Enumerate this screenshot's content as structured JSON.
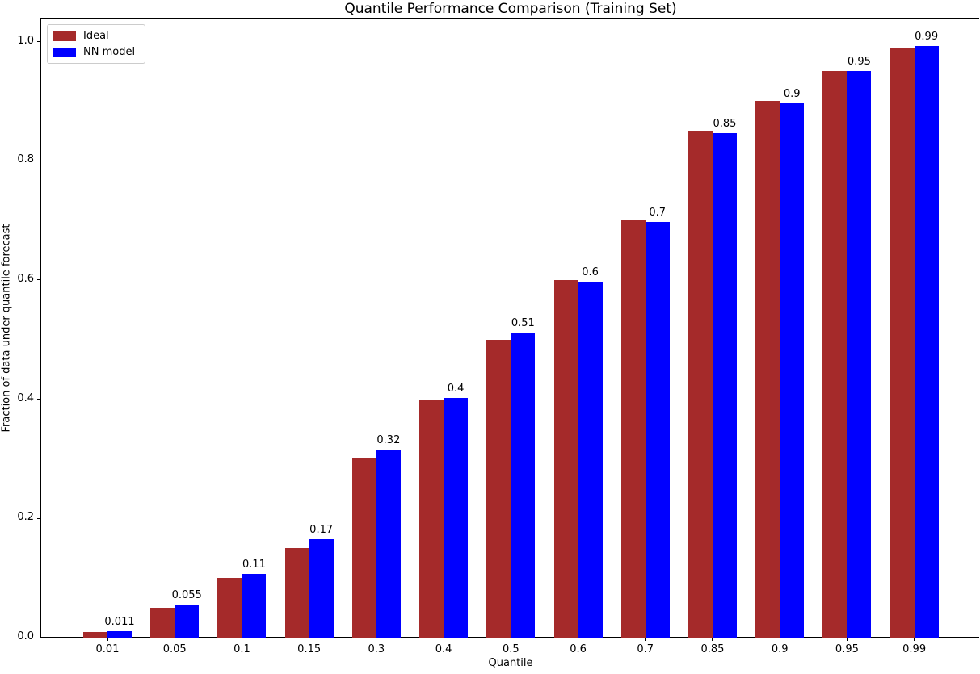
{
  "chart_data": {
    "type": "bar",
    "title": "Quantile Performance Comparison (Training Set)",
    "xlabel": "Quantile",
    "ylabel": "Fraction of data under quantile forecast",
    "categories": [
      "0.01",
      "0.05",
      "0.1",
      "0.15",
      "0.3",
      "0.4",
      "0.5",
      "0.6",
      "0.7",
      "0.85",
      "0.9",
      "0.95",
      "0.99"
    ],
    "series": [
      {
        "name": "Ideal",
        "color": "#A52A2A",
        "values": [
          0.01,
          0.05,
          0.1,
          0.15,
          0.3,
          0.4,
          0.5,
          0.6,
          0.7,
          0.85,
          0.9,
          0.95,
          0.99
        ]
      },
      {
        "name": "NN model",
        "color": "#0000FF",
        "values": [
          0.011,
          0.055,
          0.107,
          0.165,
          0.315,
          0.402,
          0.512,
          0.597,
          0.698,
          0.847,
          0.896,
          0.95,
          0.992
        ],
        "bar_labels": [
          "0.011",
          "0.055",
          "0.11",
          "0.17",
          "0.32",
          "0.4",
          "0.51",
          "0.6",
          "0.7",
          "0.85",
          "0.9",
          "0.95",
          "0.99"
        ]
      }
    ],
    "yticks": [
      "0.0",
      "0.2",
      "0.4",
      "0.6",
      "0.8",
      "1.0"
    ],
    "ylim": [
      0,
      1.04
    ],
    "grid": false,
    "legend_position": "upper left"
  }
}
